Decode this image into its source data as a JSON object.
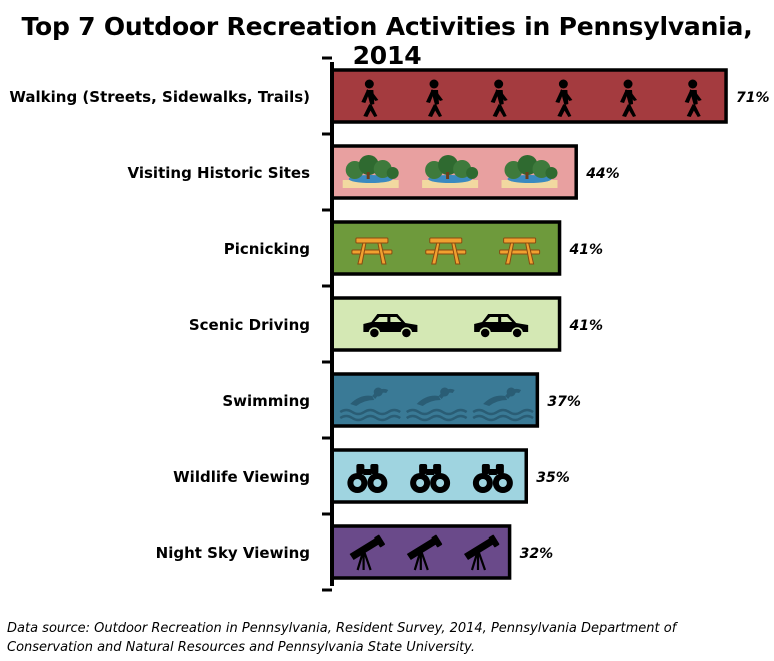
{
  "chart_data": {
    "type": "bar",
    "orientation": "horizontal",
    "title": "Top 7 Outdoor Recreation Activities in Pennsylvania, 2014",
    "categories": [
      "Walking (Streets, Sidewalks, Trails)",
      "Visiting Historic Sites",
      "Picnicking",
      "Scenic Driving",
      "Swimming",
      "Wildlife Viewing",
      "Night Sky Viewing"
    ],
    "values": [
      71,
      44,
      41,
      41,
      37,
      35,
      32
    ],
    "value_labels": [
      "71%",
      "44%",
      "41%",
      "41%",
      "37%",
      "35%",
      "32%"
    ],
    "xlim": [
      0,
      75
    ],
    "grid": false,
    "legend": "none",
    "bar_colors": [
      "#a43b3f",
      "#e8a0a0",
      "#6e9a3c",
      "#d4e8b4",
      "#3a7a96",
      "#9fd4e0",
      "#6a4a8a"
    ],
    "bar_icons": [
      "walker-icon",
      "forest-icon",
      "picnic-table-icon",
      "car-icon",
      "swimmer-icon",
      "binoculars-icon",
      "telescope-icon"
    ],
    "icon_colors": [
      "#000000",
      "#3e7a3c",
      "#f0a030",
      "#000000",
      "#2a5d75",
      "#000000",
      "#000000"
    ]
  },
  "footer": {
    "source_line1": "Data source: Outdoor Recreation in Pennsylvania, Resident Survey, 2014, Pennsylvania Department of",
    "source_line2": "Conservation and Natural Resources and Pennsylvania State University."
  }
}
